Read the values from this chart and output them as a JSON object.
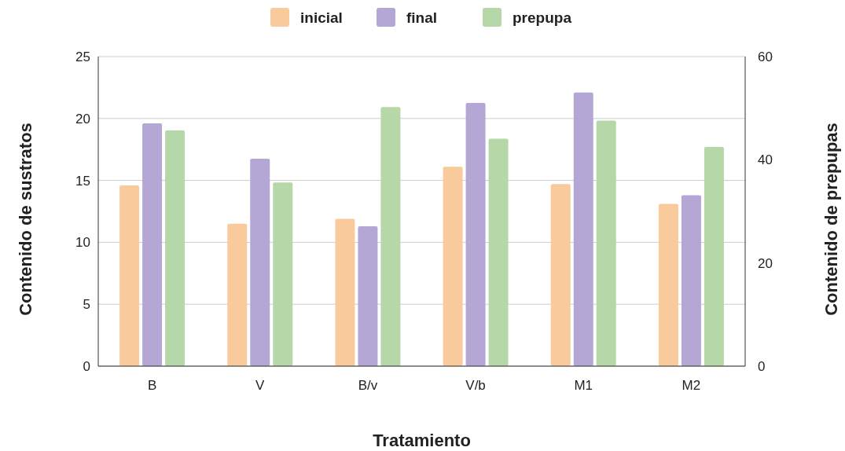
{
  "chart_data": {
    "type": "bar",
    "xlabel": "Tratamiento",
    "ylabel": "Contenido de sustratos",
    "y2label": "Contenido de prepupas",
    "categories": [
      "B",
      "V",
      "B/v",
      "V/b",
      "M1",
      "M2"
    ],
    "series": [
      {
        "name": "inicial",
        "color": "#f9cb9c",
        "values": [
          14.6,
          11.5,
          11.9,
          16.1,
          14.7,
          13.1
        ]
      },
      {
        "name": "final",
        "color": "#b4a7d6",
        "values": [
          19.6,
          16.75,
          11.3,
          21.25,
          22.1,
          13.8
        ]
      },
      {
        "name": "prepupa",
        "color": "#b6d7a8",
        "axis": "y2",
        "values": [
          45.7,
          35.6,
          50.2,
          44.1,
          47.6,
          42.5
        ]
      }
    ],
    "ylim": [
      0,
      25
    ],
    "yticks": [
      0,
      5,
      10,
      15,
      20,
      25
    ],
    "y2lim": [
      0,
      60
    ],
    "y2ticks": [
      0,
      20,
      40,
      60
    ],
    "grid": "y",
    "legend": "top"
  }
}
